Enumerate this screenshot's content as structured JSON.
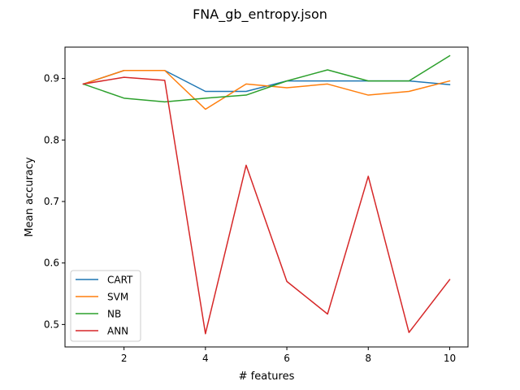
{
  "chart_data": {
    "type": "line",
    "title": "FNA_gb_entropy.json",
    "xlabel": "# features",
    "ylabel": "Mean accuracy",
    "x": [
      1,
      2,
      3,
      4,
      5,
      6,
      7,
      8,
      9,
      10
    ],
    "xlim": [
      0.55,
      10.45
    ],
    "ylim": [
      0.4635,
      0.951
    ],
    "xticks": [
      2,
      4,
      6,
      8,
      10
    ],
    "yticks": [
      0.5,
      0.6,
      0.7,
      0.8,
      0.9
    ],
    "ytick_labels": [
      "0.5",
      "0.6",
      "0.7",
      "0.8",
      "0.9"
    ],
    "grid": false,
    "legend_position": "lower-left",
    "series": [
      {
        "name": "CART",
        "color": "#1f77b4",
        "values": [
          0.891,
          0.913,
          0.913,
          0.879,
          0.879,
          0.896,
          0.896,
          0.896,
          0.896,
          0.89
        ]
      },
      {
        "name": "SVM",
        "color": "#ff7f0e",
        "values": [
          0.891,
          0.913,
          0.913,
          0.85,
          0.891,
          0.885,
          0.891,
          0.873,
          0.879,
          0.896
        ]
      },
      {
        "name": "NB",
        "color": "#2ca02c",
        "values": [
          0.891,
          0.868,
          0.862,
          0.868,
          0.873,
          0.896,
          0.914,
          0.896,
          0.896,
          0.937
        ]
      },
      {
        "name": "ANN",
        "color": "#d62728",
        "values": [
          0.891,
          0.902,
          0.897,
          0.485,
          0.759,
          0.57,
          0.517,
          0.741,
          0.487,
          0.573
        ]
      }
    ]
  }
}
